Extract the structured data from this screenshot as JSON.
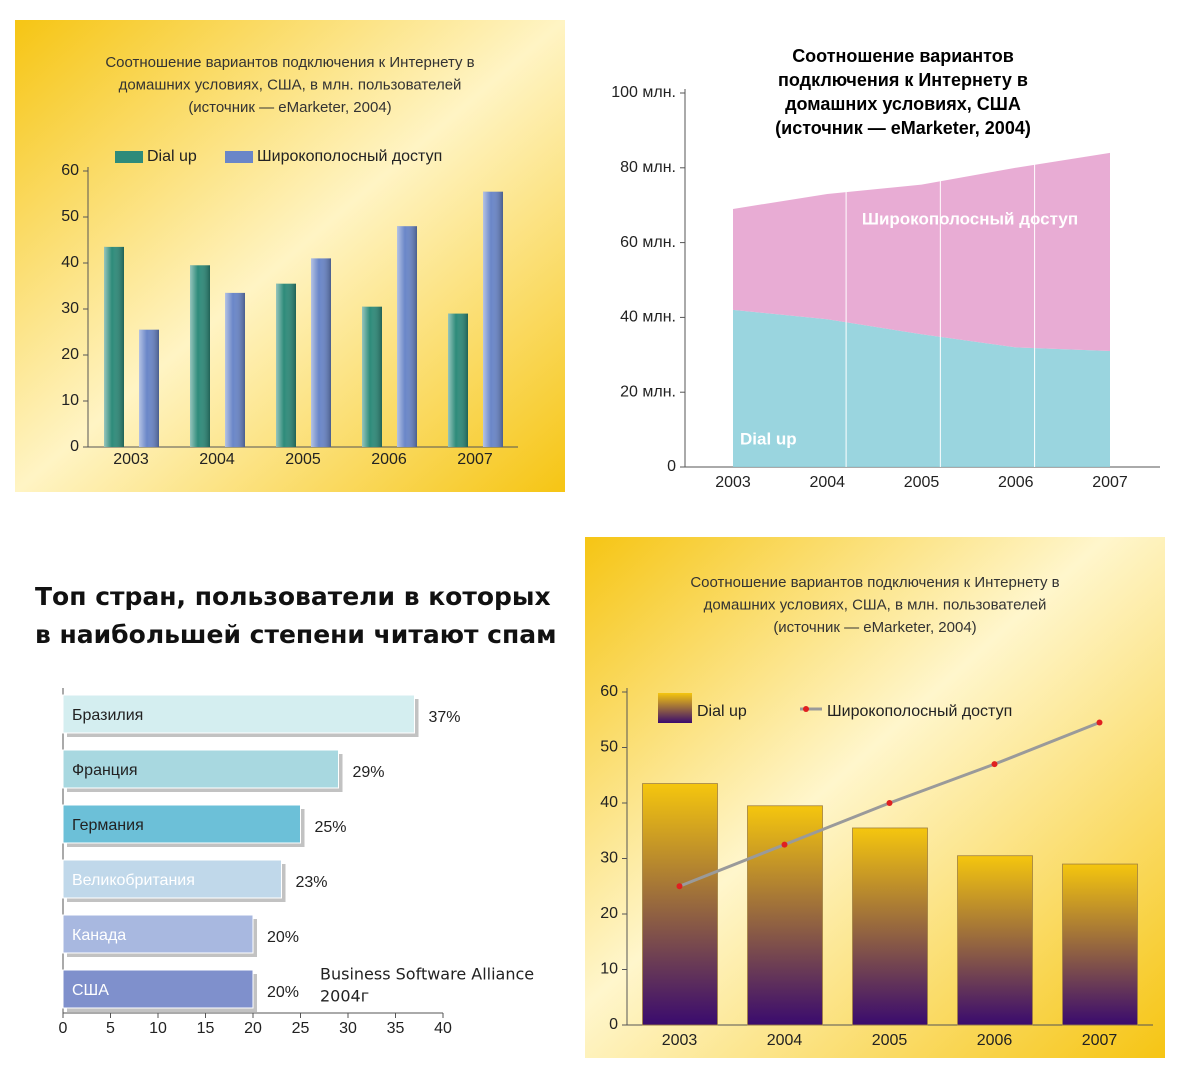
{
  "chart_data": [
    {
      "type": "bar",
      "title": [
        "Соотношение вариантов подключения к Интернету в",
        "домашних условиях, США, в млн. пользователей",
        "(источник — eMarketer, 2004)"
      ],
      "categories": [
        "2003",
        "2004",
        "2005",
        "2006",
        "2007"
      ],
      "series": [
        {
          "name": "Dial up",
          "color": "#2e8b7a",
          "values": [
            43.5,
            39.5,
            35.5,
            30.5,
            29
          ]
        },
        {
          "name": "Широкополосный доступ",
          "color": "#6a86c8",
          "values": [
            25.5,
            33.5,
            41,
            48,
            55.5
          ]
        }
      ],
      "ylim": [
        0,
        60
      ],
      "yticks": [
        0,
        10,
        20,
        30,
        40,
        50,
        60
      ]
    },
    {
      "type": "area",
      "stacked": true,
      "title": [
        "Соотношение вариантов",
        "подключения к Интернету в",
        "домашних условиях, США",
        "(источник — eMarketer, 2004)"
      ],
      "categories": [
        "2003",
        "2004",
        "2005",
        "2006",
        "2007"
      ],
      "series": [
        {
          "name": "Dial up",
          "color": "#8fd0dc",
          "values": [
            42,
            39.5,
            35.5,
            32,
            31
          ]
        },
        {
          "name": "Широкополосный доступ",
          "color": "#e6a3cf",
          "values": [
            27,
            33.5,
            40,
            48,
            53
          ]
        }
      ],
      "ylim": [
        0,
        100
      ],
      "yticks": [
        0,
        {
          "value": 20,
          "label": "20 млн."
        },
        {
          "value": 40,
          "label": "40 млн."
        },
        {
          "value": 60,
          "label": "60 млн."
        },
        {
          "value": 80,
          "label": "80 млн."
        },
        {
          "value": 100,
          "label": "100 млн."
        }
      ]
    },
    {
      "type": "barh",
      "title": [
        "Топ стран, пользователи в которых",
        "в наибольшей степени читают спам"
      ],
      "categories": [
        "Бразилия",
        "Франция",
        "Германия",
        "Великобритания",
        "Канада",
        "США"
      ],
      "values": [
        37,
        29,
        25,
        23,
        20,
        20
      ],
      "value_labels": [
        "37%",
        "29%",
        "25%",
        "23%",
        "20%",
        "20%"
      ],
      "colors": [
        "#d4eef0",
        "#a8d8e0",
        "#6cc0d8",
        "#c0d8ea",
        "#a8b8e0",
        "#7f90cc"
      ],
      "xlim": [
        0,
        40
      ],
      "xticks": [
        0,
        5,
        10,
        15,
        20,
        25,
        30,
        35,
        40
      ],
      "note": [
        "Business Software Alliance",
        "2004г"
      ]
    },
    {
      "type": "combo",
      "title": [
        "Соотношение вариантов подключения к Интернету в",
        "домашних условиях, США, в млн. пользователей",
        "(источник — eMarketer, 2004)"
      ],
      "categories": [
        "2003",
        "2004",
        "2005",
        "2006",
        "2007"
      ],
      "series": [
        {
          "name": "Dial up",
          "type": "bar",
          "color": "#f3c613",
          "values": [
            43.5,
            39.5,
            35.5,
            30.5,
            29
          ]
        },
        {
          "name": "Широкополосный доступ",
          "type": "line",
          "color": "#9a9a9a",
          "values": [
            25,
            32.5,
            40,
            47,
            54.5
          ]
        }
      ],
      "ylim": [
        0,
        60
      ],
      "yticks": [
        0,
        10,
        20,
        30,
        40,
        50,
        60
      ]
    }
  ]
}
